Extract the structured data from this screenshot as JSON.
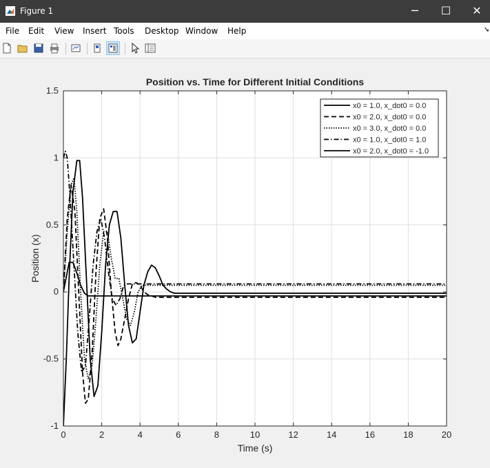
{
  "window": {
    "title": "Figure 1",
    "min_label": "─",
    "max_label": "☐",
    "close_label": "✕"
  },
  "menu": {
    "items": [
      "File",
      "Edit",
      "View",
      "Insert",
      "Tools",
      "Desktop",
      "Window",
      "Help"
    ],
    "overflow": "➘"
  },
  "toolbar": {
    "buttons": [
      "new-figure-icon",
      "open-folder-icon",
      "save-icon",
      "print-icon",
      "link-plot-icon",
      "hide-plot-tools-icon",
      "show-plot-tools-icon",
      "edit-plot-arrow-icon",
      "property-inspector-icon"
    ]
  },
  "colors": {
    "titlebar": "#3c3c3c",
    "figure_bg": "#f0f0f0",
    "axes_bg": "#ffffff",
    "grid": "#dfdfdf",
    "line": "#000000"
  },
  "chart_data": {
    "type": "line",
    "title": "Position vs. Time for Different Initial Conditions",
    "xlabel": "Time (s)",
    "ylabel": "Position (x)",
    "xlim": [
      0,
      20
    ],
    "ylim": [
      -1,
      1.5
    ],
    "xticks": [
      0,
      2,
      4,
      6,
      8,
      10,
      12,
      14,
      16,
      18,
      20
    ],
    "yticks": [
      -1,
      -0.5,
      0,
      0.5,
      1,
      1.5
    ],
    "ytick_labels": [
      "-1",
      "-0.5",
      "0",
      "0.5",
      "1",
      "1.5"
    ],
    "grid": true,
    "legend_position": "top-right",
    "series": [
      {
        "name": "x0 = 1.0, x_dot0 = 0.0",
        "style": "solid",
        "color": "#000000",
        "x": [
          0,
          0.3,
          0.5,
          0.7,
          0.9,
          1.1,
          1.3,
          20
        ],
        "y": [
          0,
          0.22,
          0.22,
          0.14,
          0.05,
          -0.01,
          -0.03,
          -0.03
        ]
      },
      {
        "name": "x0 = 2.0, x_dot0 = 0.0",
        "style": "dashed",
        "color": "#000000",
        "x": [
          0,
          0.2,
          0.4,
          0.6,
          0.8,
          1.0,
          1.15,
          1.3,
          1.5,
          1.7,
          1.9,
          2.1,
          2.3,
          2.5,
          2.7,
          2.85,
          3.0,
          3.2,
          3.4,
          3.6,
          3.8,
          4.0,
          4.2,
          4.4,
          4.6,
          4.8,
          5.0,
          5.4,
          20
        ],
        "y": [
          0,
          0.55,
          0.8,
          0.6,
          0.0,
          -0.6,
          -0.83,
          -0.8,
          -0.45,
          0.15,
          0.55,
          0.62,
          0.4,
          0.0,
          -0.3,
          -0.4,
          -0.35,
          -0.2,
          -0.05,
          0.06,
          0.07,
          0.05,
          0.0,
          -0.02,
          -0.03,
          -0.04,
          -0.04,
          -0.04,
          -0.04
        ]
      },
      {
        "name": "x0 = 3.0, x_dot0 = 0.0",
        "style": "dotted",
        "color": "#000000",
        "x": [
          0,
          0.2,
          0.4,
          0.55,
          0.7,
          0.9,
          1.1,
          1.3,
          1.5,
          1.7,
          1.9,
          2.1,
          2.3,
          2.5,
          2.7,
          2.9,
          3.1,
          3.3,
          3.5,
          3.7,
          3.9,
          4.1,
          4.3,
          4.5,
          4.7,
          4.9,
          5.2,
          5.6,
          20
        ],
        "y": [
          0,
          0.45,
          0.8,
          0.85,
          0.6,
          0.0,
          -0.5,
          -0.65,
          -0.55,
          -0.2,
          0.2,
          0.45,
          0.45,
          0.25,
          0.1,
          0.1,
          -0.05,
          -0.2,
          -0.25,
          -0.15,
          0.0,
          0.05,
          0.05,
          0.05,
          0.05,
          0.05,
          0.05,
          0.05,
          0.05
        ]
      },
      {
        "name": "x0 = 1.0, x_dot0 = 1.0",
        "style": "dashdot",
        "color": "#000000",
        "x": [
          0,
          0.1,
          0.2,
          0.35,
          0.55,
          0.75,
          0.95,
          1.15,
          1.35,
          1.55,
          1.75,
          1.95,
          2.15,
          2.35,
          2.55,
          2.75,
          2.95,
          3.15,
          3.35,
          3.5,
          3.7,
          3.9,
          4.1,
          4.3,
          4.5,
          4.7,
          20
        ],
        "y": [
          1.0,
          1.05,
          1.0,
          0.7,
          0.2,
          -0.3,
          -0.6,
          -0.55,
          -0.2,
          0.2,
          0.45,
          0.55,
          0.4,
          0.15,
          -0.05,
          -0.1,
          -0.05,
          0.05,
          0.06,
          0.06,
          0.06,
          0.06,
          0.06,
          0.06,
          0.06,
          0.06,
          0.06
        ]
      },
      {
        "name": "x0 = 2.0, x_dot0 = -1.0",
        "style": "solid",
        "color": "#000000",
        "x": [
          0,
          0.15,
          0.3,
          0.5,
          0.7,
          0.85,
          1.0,
          1.2,
          1.4,
          1.6,
          1.8,
          2.0,
          2.2,
          2.4,
          2.6,
          2.8,
          3.0,
          3.2,
          3.4,
          3.6,
          3.8,
          4.0,
          4.2,
          4.4,
          4.6,
          4.8,
          5.0,
          5.2,
          5.4,
          5.6,
          5.8,
          6.0,
          20
        ],
        "y": [
          -1.0,
          -0.5,
          0.1,
          0.75,
          0.98,
          0.98,
          0.7,
          0.1,
          -0.5,
          -0.78,
          -0.7,
          -0.3,
          0.2,
          0.5,
          0.6,
          0.6,
          0.4,
          0.05,
          -0.25,
          -0.38,
          -0.35,
          -0.15,
          0.05,
          0.15,
          0.2,
          0.18,
          0.12,
          0.05,
          0.02,
          0.0,
          -0.01,
          -0.01,
          -0.01
        ]
      }
    ]
  }
}
